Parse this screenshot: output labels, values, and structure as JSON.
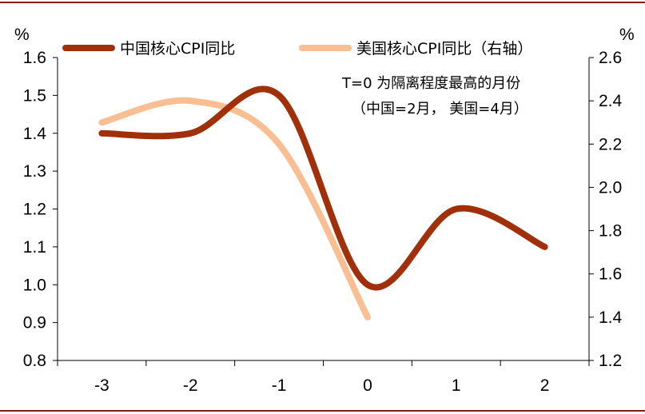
{
  "chart_data": {
    "type": "line",
    "x": [
      -3,
      -2,
      -1,
      0,
      1,
      2
    ],
    "x_tick_labels": [
      "-3",
      "-2",
      "-1",
      "0",
      "1",
      "2"
    ],
    "left_axis": {
      "unit": "%",
      "ylim": [
        0.8,
        1.6
      ],
      "ticks": [
        0.8,
        0.9,
        1.0,
        1.1,
        1.2,
        1.3,
        1.4,
        1.5,
        1.6
      ],
      "tick_labels": [
        "0.8",
        "0.9",
        "1.0",
        "1.1",
        "1.2",
        "1.3",
        "1.4",
        "1.5",
        "1.6"
      ]
    },
    "right_axis": {
      "unit": "%",
      "ylim": [
        1.2,
        2.6
      ],
      "ticks": [
        1.2,
        1.4,
        1.6,
        1.8,
        2.0,
        2.2,
        2.4,
        2.6
      ],
      "tick_labels": [
        "1.2",
        "1.4",
        "1.6",
        "1.8",
        "2.0",
        "2.2",
        "2.4",
        "2.6"
      ]
    },
    "series": [
      {
        "name": "中国核心CPI同比",
        "axis": "left",
        "color": "#A0300A",
        "x": [
          -3,
          -2,
          -1,
          0,
          1,
          2
        ],
        "values": [
          1.4,
          1.4,
          1.5,
          1.0,
          1.2,
          1.1
        ]
      },
      {
        "name": "美国核心CPI同比（右轴）",
        "axis": "right",
        "color": "#F9BE91",
        "x": [
          -3,
          -2,
          -1,
          0
        ],
        "values": [
          2.3,
          2.4,
          2.2,
          1.4
        ]
      }
    ],
    "annotation": [
      "T=0 为隔离程度最高的月份",
      "（中国=2月， 美国=4月）"
    ],
    "grid": false,
    "legend_position": "top"
  },
  "frame": {
    "rule_color": "#8B1A1A"
  }
}
